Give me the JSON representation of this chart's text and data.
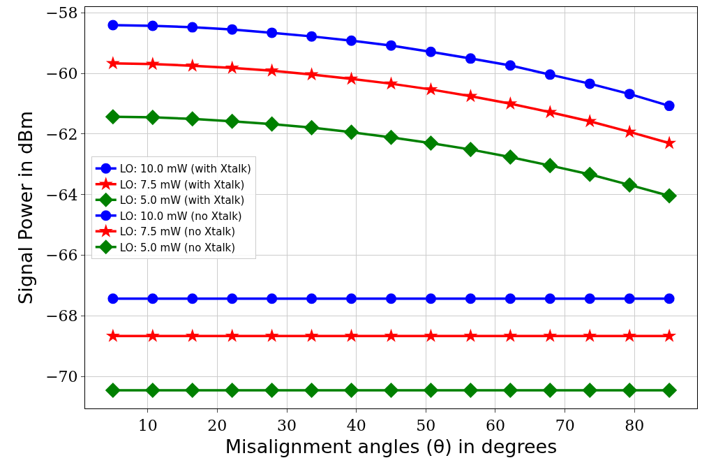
{
  "chart_data": {
    "type": "line",
    "xlabel": "Misalignment angles (θ) in degrees",
    "ylabel": "Signal Power in dBm",
    "x": [
      5,
      10.714,
      16.429,
      22.143,
      27.857,
      33.571,
      39.286,
      45,
      50.714,
      56.429,
      62.143,
      67.857,
      73.571,
      79.286,
      85
    ],
    "series": [
      {
        "name": "LO: 10.0 mW (with Xtalk)",
        "color": "#0000ff",
        "marker": "circle",
        "values": [
          -58.41,
          -58.43,
          -58.48,
          -58.55,
          -58.66,
          -58.78,
          -58.92,
          -59.08,
          -59.29,
          -59.51,
          -59.74,
          -60.04,
          -60.34,
          -60.68,
          -61.07
        ]
      },
      {
        "name": "LO: 7.5 mW (with Xtalk)",
        "color": "#ff0000",
        "marker": "star",
        "values": [
          -59.67,
          -59.69,
          -59.75,
          -59.82,
          -59.91,
          -60.04,
          -60.18,
          -60.34,
          -60.53,
          -60.75,
          -61.0,
          -61.28,
          -61.58,
          -61.93,
          -62.3
        ]
      },
      {
        "name": "LO: 5.0 mW (with Xtalk)",
        "color": "#008000",
        "marker": "diamond",
        "values": [
          -61.43,
          -61.45,
          -61.5,
          -61.58,
          -61.67,
          -61.79,
          -61.94,
          -62.11,
          -62.3,
          -62.51,
          -62.76,
          -63.04,
          -63.33,
          -63.68,
          -64.04
        ]
      },
      {
        "name": "LO: 10.0 mW (no Xtalk)",
        "color": "#0000ff",
        "marker": "circle",
        "values": [
          -67.43,
          -67.43,
          -67.43,
          -67.43,
          -67.43,
          -67.43,
          -67.43,
          -67.43,
          -67.43,
          -67.43,
          -67.43,
          -67.43,
          -67.43,
          -67.43,
          -67.43
        ]
      },
      {
        "name": "LO: 7.5 mW (no Xtalk)",
        "color": "#ff0000",
        "marker": "star",
        "values": [
          -68.66,
          -68.66,
          -68.66,
          -68.66,
          -68.66,
          -68.66,
          -68.66,
          -68.66,
          -68.66,
          -68.66,
          -68.66,
          -68.66,
          -68.66,
          -68.66,
          -68.66
        ]
      },
      {
        "name": "LO: 5.0 mW (no Xtalk)",
        "color": "#008000",
        "marker": "diamond",
        "values": [
          -70.45,
          -70.45,
          -70.45,
          -70.45,
          -70.45,
          -70.45,
          -70.45,
          -70.45,
          -70.45,
          -70.45,
          -70.45,
          -70.45,
          -70.45,
          -70.45,
          -70.45
        ]
      }
    ],
    "xlim": [
      1,
      89
    ],
    "xticks": [
      10,
      20,
      30,
      40,
      50,
      60,
      70,
      80
    ],
    "ylim": [
      -71.05,
      -57.81
    ],
    "yticks": [
      {
        "value": -58,
        "label": "−58"
      },
      {
        "value": -60,
        "label": "−60"
      },
      {
        "value": -62,
        "label": "−62"
      },
      {
        "value": -64,
        "label": "−64"
      },
      {
        "value": -66,
        "label": "−66"
      },
      {
        "value": -68,
        "label": "−68"
      },
      {
        "value": -70,
        "label": "−70"
      }
    ],
    "grid": true,
    "legend": "left",
    "line_style": "solid"
  }
}
